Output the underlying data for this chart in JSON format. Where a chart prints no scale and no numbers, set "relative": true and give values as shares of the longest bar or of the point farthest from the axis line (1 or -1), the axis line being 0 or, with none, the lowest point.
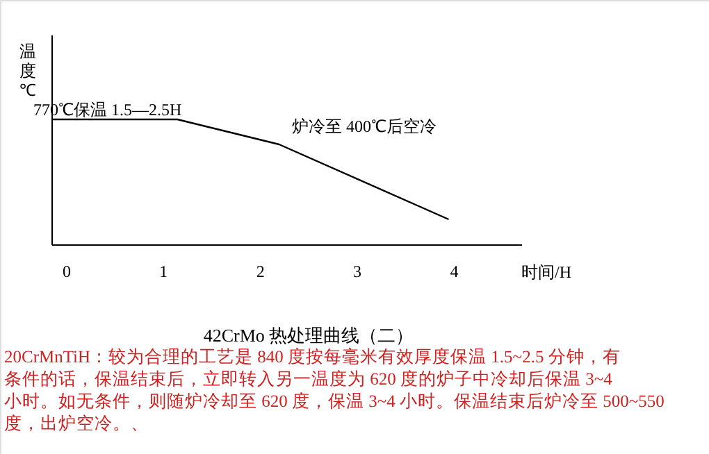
{
  "chart_data": {
    "type": "line",
    "relative": true,
    "title": "42CrMo 热处理曲线（二）",
    "xlabel": "时间/H",
    "ylabel": "温度℃",
    "x": [
      -0.15,
      1.15,
      2.2,
      3.95
    ],
    "series": [
      {
        "color": "#000000",
        "values": [
          1,
          1,
          0.8,
          0.2
        ]
      }
    ],
    "xlim": [
      -0.15,
      4.7
    ],
    "xticks": [
      0,
      1,
      2,
      3,
      4
    ],
    "annotations": [
      "770℃保温 1.5—2.5H",
      "炉冷至 400℃后空冷",
      "20CrMnTiH：较为合理的工艺是 840 度按每毫米有效厚度保温 1.5~2.5 分钟，有",
      "条件的话，保温结束后，立即转入另一温度为  620  度的炉子中冷却后保温  3~4",
      "小时。如无条件，则随炉冷却至 620 度，保温 3~4 小时。保温结束后炉冷至 500~550",
      "度，出炉空冷。、"
    ]
  }
}
